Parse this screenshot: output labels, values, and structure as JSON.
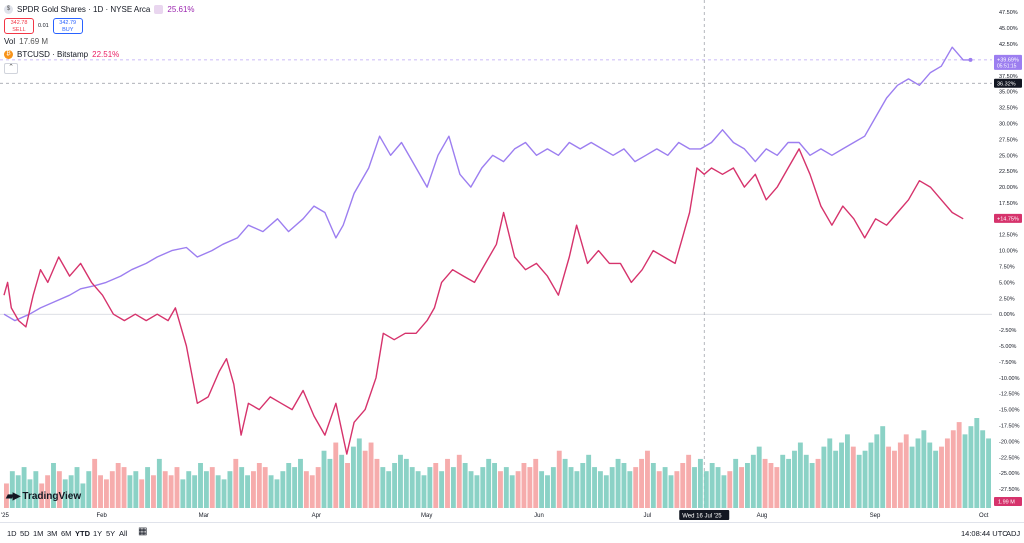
{
  "legend": {
    "main_symbol": "SPDR Gold Shares · 1D · NYSE Arca",
    "main_change": "25.61%",
    "sell_price": "342.78",
    "sell_label": "SELL",
    "spread": "0.01",
    "buy_price": "342.79",
    "buy_label": "BUY",
    "vol_label": "Vol",
    "vol_value": "17.69 M",
    "compare_symbol": "BTCUSD · Bitstamp",
    "compare_change": "22.51%"
  },
  "colors": {
    "gold_line": "#9c7ef0",
    "btc_line": "#d6336c",
    "vol_up": "#7ecdc0",
    "vol_down": "#f5a3a3"
  },
  "chart_data": {
    "type": "line",
    "y_axis": {
      "ylim": [
        -30,
        48
      ],
      "ticks": [
        "47.50%",
        "45.00%",
        "42.50%",
        "40.00%",
        "37.50%",
        "35.00%",
        "32.50%",
        "30.00%",
        "27.50%",
        "25.00%",
        "22.50%",
        "20.00%",
        "17.50%",
        "15.00%",
        "12.50%",
        "10.00%",
        "7.50%",
        "5.00%",
        "2.50%",
        "0.00%",
        "-2.50%",
        "-5.00%",
        "-7.50%",
        "-10.00%",
        "-12.50%",
        "-15.00%",
        "-17.50%",
        "-20.00%",
        "-22.50%",
        "-25.00%",
        "-27.50%"
      ]
    },
    "x_axis": {
      "ticks": [
        {
          "label": "'25",
          "day": 0
        },
        {
          "label": "Feb",
          "day": 27
        },
        {
          "label": "Mar",
          "day": 55
        },
        {
          "label": "Apr",
          "day": 86
        },
        {
          "label": "May",
          "day": 116
        },
        {
          "label": "Jun",
          "day": 147
        },
        {
          "label": "Jul",
          "day": 177
        },
        {
          "label": "Aug",
          "day": 208
        },
        {
          "label": "Sep",
          "day": 239
        },
        {
          "label": "Oct",
          "day": 269
        }
      ],
      "xlim": [
        0,
        272
      ],
      "crosshair_label": "Wed 16 Jul '25",
      "crosshair_day": 192
    },
    "series": [
      {
        "points": [
          [
            0,
            0
          ],
          [
            3,
            -1
          ],
          [
            7,
            0
          ],
          [
            10,
            1
          ],
          [
            14,
            2
          ],
          [
            18,
            3
          ],
          [
            21,
            4
          ],
          [
            25,
            4.5
          ],
          [
            28,
            5
          ],
          [
            32,
            6
          ],
          [
            35,
            7
          ],
          [
            39,
            8
          ],
          [
            42,
            9
          ],
          [
            46,
            10
          ],
          [
            50,
            10.5
          ],
          [
            53,
            9
          ],
          [
            57,
            10
          ],
          [
            60,
            11
          ],
          [
            64,
            12
          ],
          [
            67,
            14
          ],
          [
            71,
            13
          ],
          [
            75,
            15
          ],
          [
            78,
            13
          ],
          [
            82,
            15
          ],
          [
            85,
            17
          ],
          [
            88,
            16
          ],
          [
            91,
            12
          ],
          [
            93,
            14
          ],
          [
            96,
            19
          ],
          [
            100,
            23
          ],
          [
            103,
            28
          ],
          [
            106,
            25
          ],
          [
            109,
            27
          ],
          [
            112,
            24
          ],
          [
            116,
            20
          ],
          [
            119,
            25
          ],
          [
            122,
            28
          ],
          [
            125,
            22
          ],
          [
            128,
            20
          ],
          [
            131,
            23
          ],
          [
            134,
            25
          ],
          [
            137,
            24
          ],
          [
            140,
            26
          ],
          [
            143,
            27
          ],
          [
            146,
            25
          ],
          [
            149,
            26
          ],
          [
            152,
            25
          ],
          [
            155,
            27
          ],
          [
            158,
            26
          ],
          [
            161,
            27
          ],
          [
            164,
            26
          ],
          [
            167,
            25
          ],
          [
            170,
            26
          ],
          [
            173,
            24
          ],
          [
            176,
            25
          ],
          [
            179,
            26
          ],
          [
            182,
            25
          ],
          [
            185,
            27
          ],
          [
            188,
            26
          ],
          [
            191,
            26
          ],
          [
            194,
            27
          ],
          [
            197,
            29
          ],
          [
            200,
            27
          ],
          [
            203,
            26
          ],
          [
            206,
            24
          ],
          [
            209,
            26
          ],
          [
            212,
            25
          ],
          [
            215,
            27
          ],
          [
            218,
            27
          ],
          [
            221,
            25
          ],
          [
            224,
            26
          ],
          [
            227,
            25
          ],
          [
            230,
            26
          ],
          [
            233,
            27
          ],
          [
            236,
            28
          ],
          [
            239,
            31
          ],
          [
            242,
            34
          ],
          [
            245,
            36
          ],
          [
            248,
            37
          ],
          [
            251,
            36
          ],
          [
            254,
            38
          ],
          [
            257,
            39
          ],
          [
            260,
            42
          ],
          [
            263,
            40
          ],
          [
            265,
            40
          ]
        ],
        "end_label": "+39.69%",
        "end_sub_label": "05:51:15"
      },
      {
        "points": [
          [
            0,
            3
          ],
          [
            1,
            5
          ],
          [
            2,
            1
          ],
          [
            4,
            -1
          ],
          [
            6,
            -2
          ],
          [
            8,
            3
          ],
          [
            10,
            7
          ],
          [
            12,
            5
          ],
          [
            15,
            9
          ],
          [
            18,
            6
          ],
          [
            21,
            8
          ],
          [
            24,
            5
          ],
          [
            27,
            3
          ],
          [
            30,
            0
          ],
          [
            33,
            -1
          ],
          [
            36,
            0
          ],
          [
            39,
            -1
          ],
          [
            42,
            0
          ],
          [
            45,
            -1
          ],
          [
            47,
            1
          ],
          [
            50,
            -5
          ],
          [
            53,
            -14
          ],
          [
            56,
            -13
          ],
          [
            59,
            -9
          ],
          [
            61,
            -7
          ],
          [
            63,
            -11
          ],
          [
            65,
            -19
          ],
          [
            67,
            -14
          ],
          [
            70,
            -15
          ],
          [
            73,
            -13
          ],
          [
            76,
            -14
          ],
          [
            79,
            -15
          ],
          [
            82,
            -12
          ],
          [
            85,
            -16
          ],
          [
            88,
            -19
          ],
          [
            91,
            -14
          ],
          [
            94,
            -22
          ],
          [
            96,
            -17
          ],
          [
            99,
            -15
          ],
          [
            102,
            -10
          ],
          [
            104,
            -3
          ],
          [
            107,
            -4
          ],
          [
            110,
            -3
          ],
          [
            113,
            -3
          ],
          [
            116,
            -1
          ],
          [
            118,
            1
          ],
          [
            120,
            5
          ],
          [
            123,
            7
          ],
          [
            126,
            6
          ],
          [
            129,
            5
          ],
          [
            132,
            8
          ],
          [
            135,
            11
          ],
          [
            137,
            16
          ],
          [
            140,
            9
          ],
          [
            143,
            7
          ],
          [
            146,
            8
          ],
          [
            149,
            6
          ],
          [
            152,
            3
          ],
          [
            155,
            9
          ],
          [
            157,
            14
          ],
          [
            160,
            8
          ],
          [
            163,
            10
          ],
          [
            166,
            8
          ],
          [
            169,
            8
          ],
          [
            172,
            5
          ],
          [
            175,
            7
          ],
          [
            178,
            10
          ],
          [
            181,
            9
          ],
          [
            184,
            8
          ],
          [
            186,
            12
          ],
          [
            188,
            16
          ],
          [
            190,
            23
          ],
          [
            192,
            22
          ],
          [
            194,
            23
          ],
          [
            197,
            22
          ],
          [
            200,
            23
          ],
          [
            203,
            20
          ],
          [
            206,
            22
          ],
          [
            209,
            18
          ],
          [
            212,
            20
          ],
          [
            215,
            23
          ],
          [
            218,
            26
          ],
          [
            221,
            22
          ],
          [
            224,
            17
          ],
          [
            227,
            14
          ],
          [
            230,
            17
          ],
          [
            233,
            15
          ],
          [
            236,
            12
          ],
          [
            239,
            15
          ],
          [
            242,
            14
          ],
          [
            245,
            16
          ],
          [
            248,
            18
          ],
          [
            251,
            21
          ],
          [
            254,
            20
          ],
          [
            257,
            18
          ],
          [
            260,
            16
          ],
          [
            263,
            15
          ]
        ],
        "end_label": "+14.75%"
      }
    ],
    "reference_labels": [
      {
        "label": "36.32%",
        "value": 36.32
      }
    ],
    "volume": {
      "values": [
        6,
        9,
        8,
        10,
        7,
        9,
        6,
        8,
        11,
        9,
        7,
        8,
        10,
        6,
        9,
        12,
        8,
        7,
        9,
        11,
        10,
        8,
        9,
        7,
        10,
        8,
        12,
        9,
        8,
        10,
        7,
        9,
        8,
        11,
        9,
        10,
        8,
        7,
        9,
        12,
        10,
        8,
        9,
        11,
        10,
        8,
        7,
        9,
        11,
        10,
        12,
        9,
        8,
        10,
        14,
        12,
        16,
        13,
        11,
        15,
        17,
        14,
        16,
        12,
        10,
        9,
        11,
        13,
        12,
        10,
        9,
        8,
        10,
        11,
        9,
        12,
        10,
        13,
        11,
        9,
        8,
        10,
        12,
        11,
        9,
        10,
        8,
        9,
        11,
        10,
        12,
        9,
        8,
        10,
        14,
        12,
        10,
        9,
        11,
        13,
        10,
        9,
        8,
        10,
        12,
        11,
        9,
        10,
        12,
        14,
        11,
        9,
        10,
        8,
        9,
        11,
        13,
        10,
        12,
        9,
        11,
        10,
        8,
        9,
        12,
        10,
        11,
        13,
        15,
        12,
        11,
        10,
        13,
        12,
        14,
        16,
        13,
        11,
        12,
        15,
        17,
        14,
        16,
        18,
        15,
        13,
        14,
        16,
        18,
        20,
        15,
        14,
        16,
        18,
        15,
        17,
        19,
        16,
        14,
        15,
        17,
        19,
        21,
        18,
        20,
        22,
        19,
        17
      ],
      "last_label": "1.99 M"
    }
  },
  "bottom_bar": {
    "ranges": [
      "1D",
      "5D",
      "1M",
      "3M",
      "6M",
      "YTD",
      "1Y",
      "5Y",
      "All"
    ],
    "active": "YTD",
    "calendar_icon": "calendar-icon",
    "time": "14:08:44 UTC",
    "adj": "ADJ"
  },
  "branding": {
    "logo_text": "TradingView"
  }
}
